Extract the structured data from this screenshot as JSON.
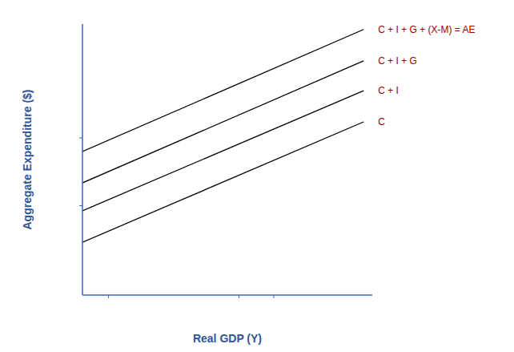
{
  "chart_data": {
    "type": "line",
    "x_label": "Real GDP (Y)",
    "y_label": "Aggregate Expenditure ($)",
    "x": [
      0,
      97
    ],
    "series": [
      {
        "name": "C + I + G + (X-M) = AE",
        "color": "#000000",
        "values": [
          53,
          98
        ]
      },
      {
        "name": "C + I + G",
        "color": "#000000",
        "values": [
          41.4,
          86.4
        ]
      },
      {
        "name": "C + I",
        "color": "#000000",
        "values": [
          31.1,
          75.4
        ]
      },
      {
        "name": "C",
        "color": "#000000",
        "values": [
          19.5,
          63.9
        ]
      }
    ],
    "xlim": [
      0,
      100
    ],
    "ylim": [
      0,
      100
    ],
    "xticks": [
      9,
      54,
      66
    ],
    "yticks": [
      33,
      58
    ],
    "tick_labels": false,
    "grid": false
  }
}
